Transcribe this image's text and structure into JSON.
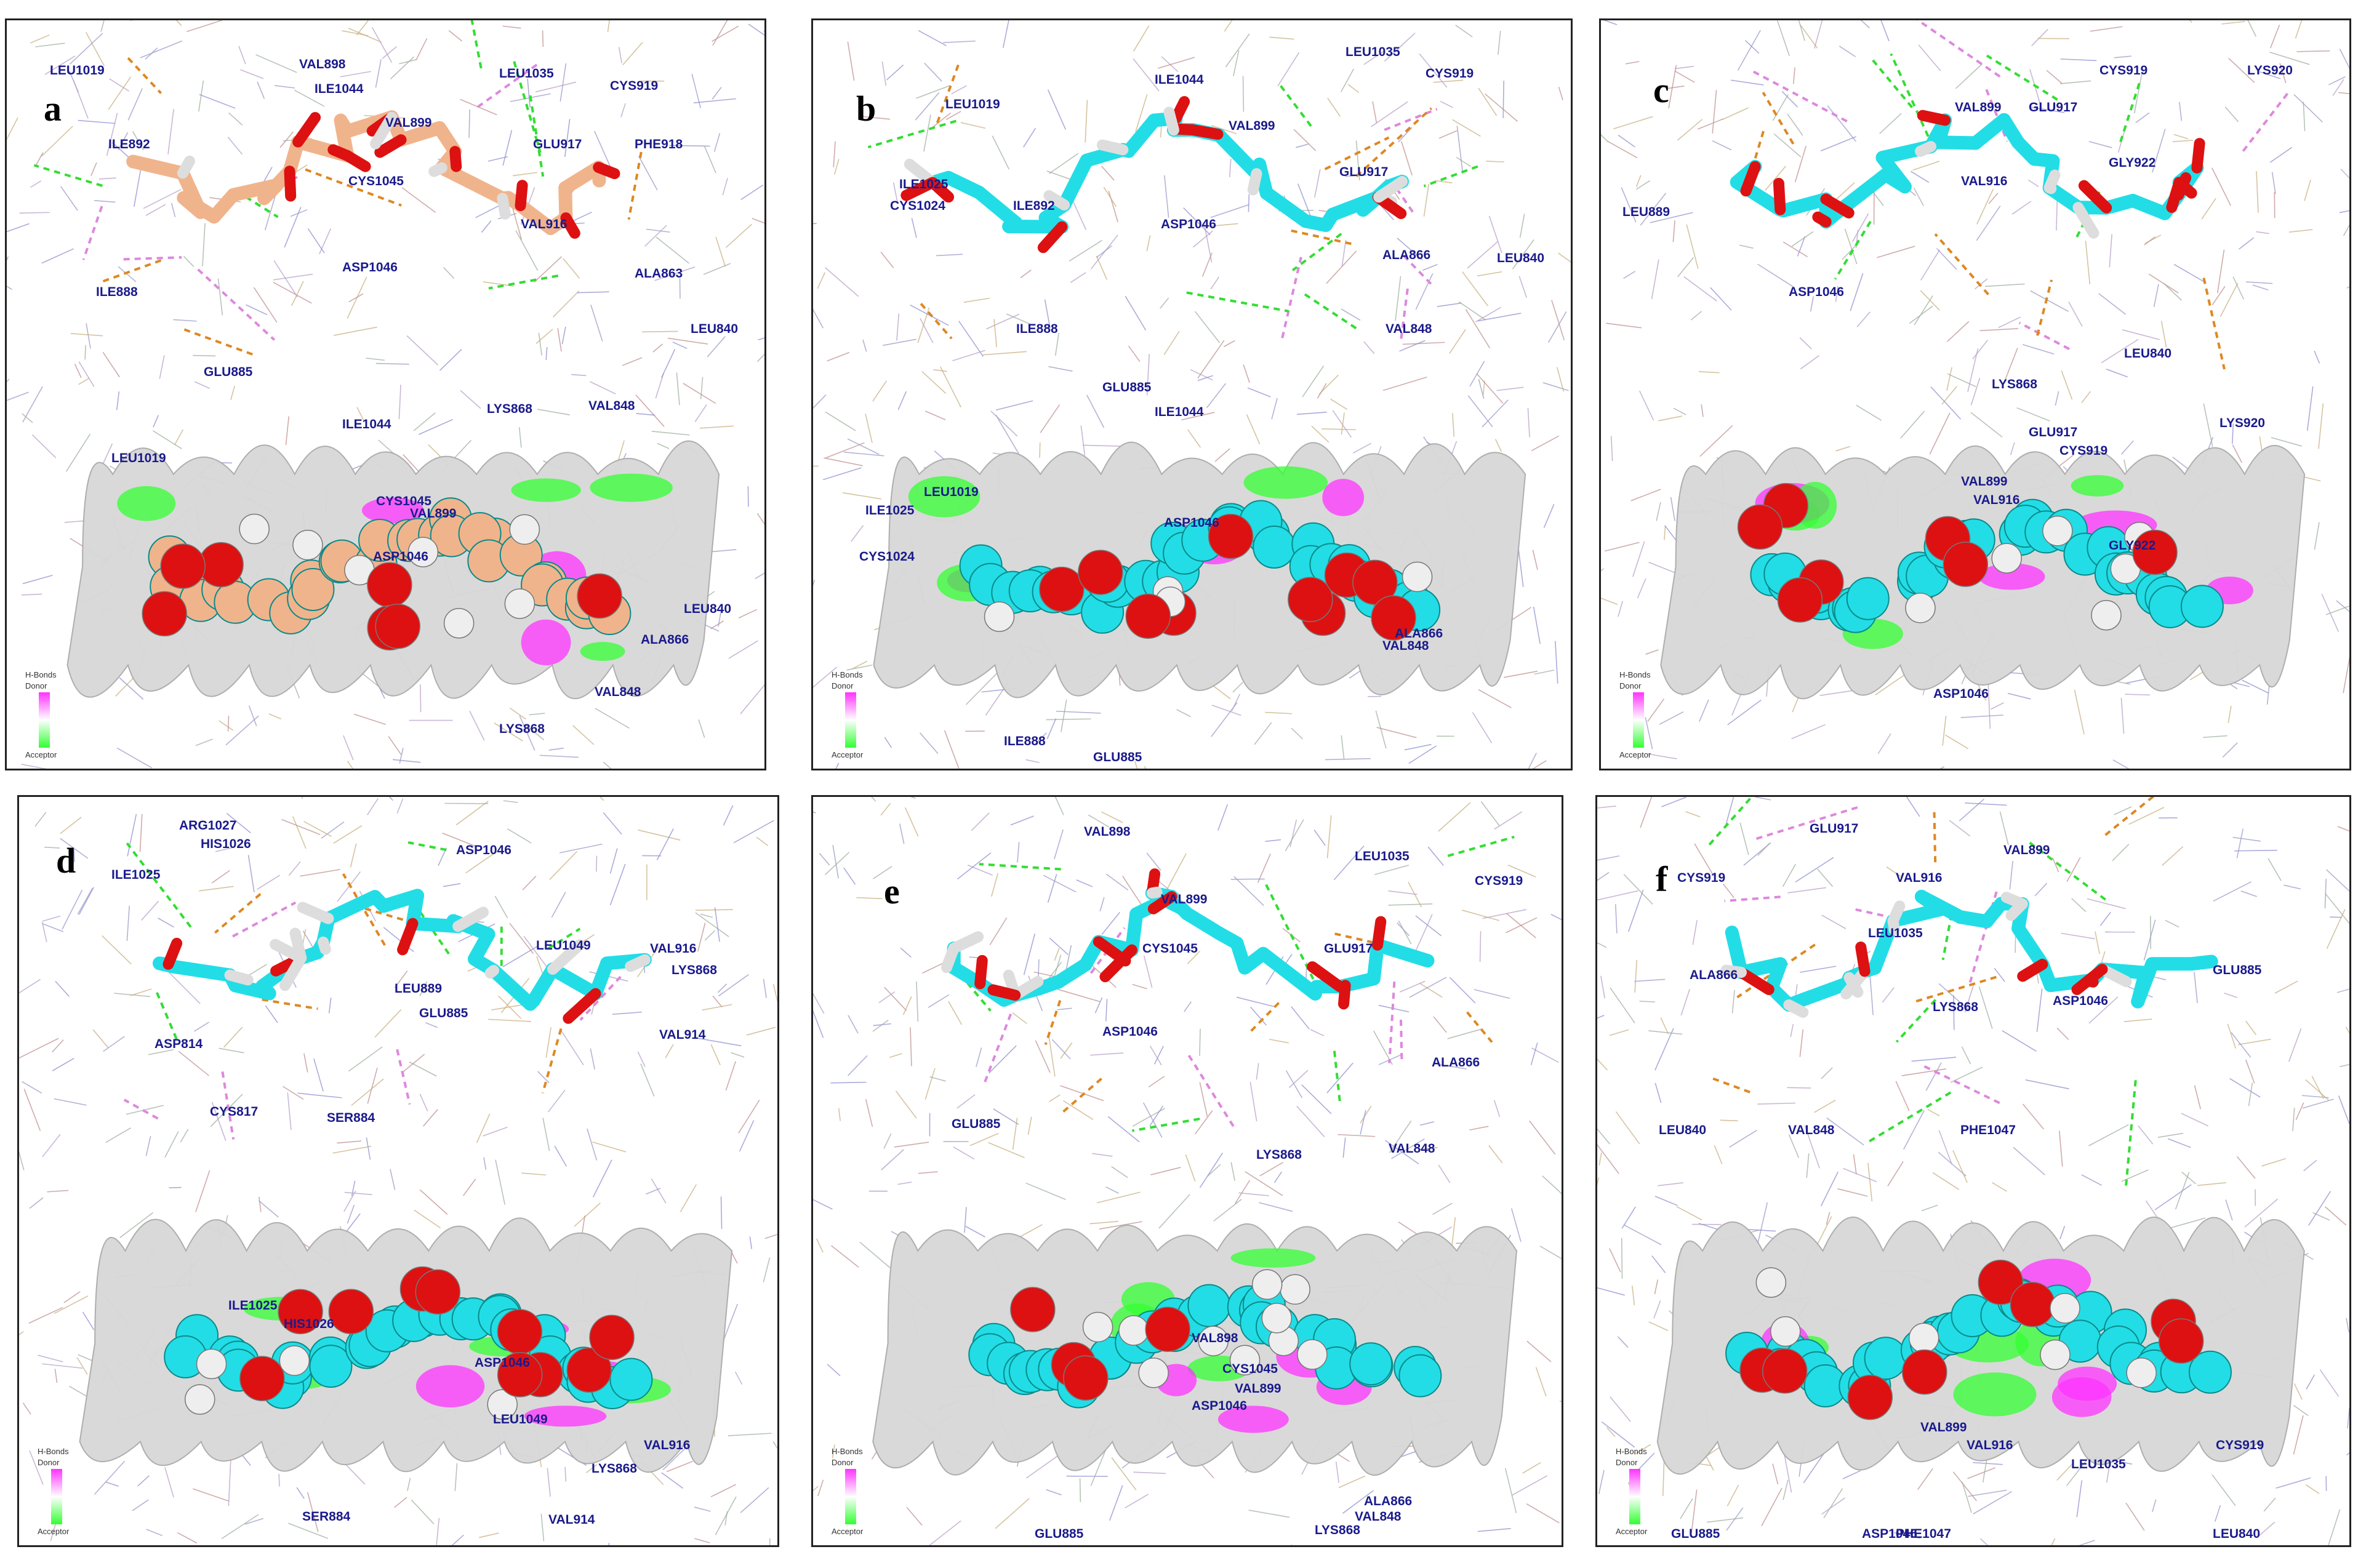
{
  "legend": {
    "title": "H-Bonds",
    "donor": "Donor",
    "acceptor": "Acceptor",
    "donor_color": "#ff33ff",
    "acceptor_color": "#33ff33"
  },
  "colors": {
    "residue_text": "#1a1a8c",
    "carbon_cyan": "#22dde6",
    "carbon_tan": "#f0b48c",
    "oxygen": "#dd1111",
    "hydrogen": "#eeeeee",
    "nitrogen": "#9a9ae8",
    "hbond": "#33dd33",
    "pi": "#dd88dd",
    "pi_cation": "#dd8822",
    "surface": "#d8d8d8"
  },
  "panels": [
    {
      "label": "a",
      "top_residues": [
        "LEU1019",
        "VAL898",
        "ILE1044",
        "LEU1035",
        "CYS919",
        "VAL899",
        "ILE892",
        "GLU917",
        "PHE918",
        "CYS1045",
        "VAL916",
        "ASP1046",
        "ALA863",
        "ILE888",
        "LEU840",
        "GLU885",
        "LYS868",
        "VAL848"
      ],
      "bottom_residues": [
        "LEU1019",
        "ILE1044",
        "CYS1045",
        "VAL899",
        "ASP1046",
        "ALA866",
        "LEU840",
        "VAL848",
        "LYS868"
      ]
    },
    {
      "label": "b",
      "top_residues": [
        "LEU1035",
        "CYS919",
        "ILE1044",
        "LEU1019",
        "VAL899",
        "ILE1025",
        "CYS1024",
        "ILE892",
        "GLU917",
        "ASP1046",
        "ALA866",
        "LEU840",
        "ILE888",
        "VAL848",
        "GLU885"
      ],
      "bottom_residues": [
        "ILE1044",
        "LEU1019",
        "ILE1025",
        "ASP1046",
        "CYS1024",
        "ALA866",
        "VAL848",
        "ILE888",
        "GLU885"
      ]
    },
    {
      "label": "c",
      "top_residues": [
        "CYS919",
        "LYS920",
        "VAL899",
        "GLU917",
        "GLY922",
        "VAL916",
        "LEU889",
        "ASP1046",
        "LEU840",
        "LYS868"
      ],
      "bottom_residues": [
        "GLU917",
        "LYS920",
        "CYS919",
        "VAL899",
        "VAL916",
        "GLY922",
        "ASP1046"
      ]
    },
    {
      "label": "d",
      "top_residues": [
        "ARG1027",
        "HIS1026",
        "ASP1046",
        "ILE1025",
        "LEU1049",
        "VAL916",
        "LYS868",
        "LEU889",
        "ASP814",
        "GLU885",
        "VAL914",
        "CYS817",
        "SER884"
      ],
      "bottom_residues": [
        "ILE1025",
        "HIS1026",
        "ASP1046",
        "LEU1049",
        "VAL916",
        "LYS868",
        "SER884",
        "VAL914"
      ]
    },
    {
      "label": "e",
      "top_residues": [
        "VAL898",
        "LEU1035",
        "CYS919",
        "VAL899",
        "CYS1045",
        "GLU917",
        "ASP1046",
        "ALA866",
        "GLU885",
        "LYS868",
        "VAL848"
      ],
      "bottom_residues": [
        "VAL898",
        "CYS1045",
        "VAL899",
        "ASP1046",
        "ALA866",
        "VAL848",
        "GLU885",
        "LYS868"
      ]
    },
    {
      "label": "f",
      "top_residues": [
        "GLU917",
        "VAL899",
        "CYS919",
        "VAL916",
        "LEU1035",
        "ALA866",
        "GLU885",
        "ASP1046",
        "LYS868",
        "LEU840",
        "VAL848",
        "PHE1047"
      ],
      "bottom_residues": [
        "VAL899",
        "VAL916",
        "CYS919",
        "LEU1035",
        "GLU885",
        "ASP1046",
        "PHE1047",
        "LEU840"
      ]
    }
  ]
}
